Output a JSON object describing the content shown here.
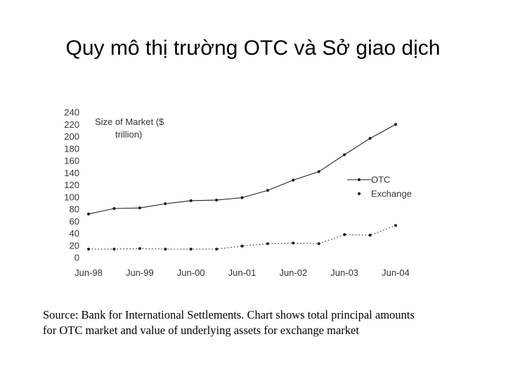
{
  "slide": {
    "title": "Quy mô thị trường OTC và Sở giao dịch",
    "caption_line1": "Source: Bank for International Settlements. Chart shows total principal amounts",
    "caption_line2": "for OTC market and value of underlying assets for exchange market"
  },
  "chart_data": {
    "type": "line",
    "title": "",
    "ylabel_line1": "Size of Market ($",
    "ylabel_line2": "trillion)",
    "xlabel": "",
    "ylim": [
      0,
      240
    ],
    "yticks": [
      0,
      20,
      40,
      60,
      80,
      100,
      120,
      140,
      160,
      180,
      200,
      220,
      240
    ],
    "x": [
      "Jun-98",
      "Dec-98",
      "Jun-99",
      "Dec-99",
      "Jun-00",
      "Dec-00",
      "Jun-01",
      "Dec-01",
      "Jun-02",
      "Dec-02",
      "Jun-03",
      "Dec-03",
      "Jun-04"
    ],
    "xtick_labels": [
      "Jun-98",
      "Jun-99",
      "Jun-00",
      "Jun-01",
      "Jun-02",
      "Jun-03",
      "Jun-04"
    ],
    "legend_position": "right",
    "grid": false,
    "series": [
      {
        "name": "OTC",
        "style": "solid",
        "values": [
          72,
          81,
          82,
          89,
          94,
          95,
          99,
          111,
          128,
          142,
          170,
          197,
          220
        ]
      },
      {
        "name": "Exchange",
        "style": "dotted",
        "values": [
          14,
          14,
          15,
          14,
          14,
          14,
          19,
          23,
          24,
          23,
          38,
          37,
          53
        ]
      }
    ],
    "colors": {
      "line": "#222222",
      "text": "#333333"
    }
  }
}
